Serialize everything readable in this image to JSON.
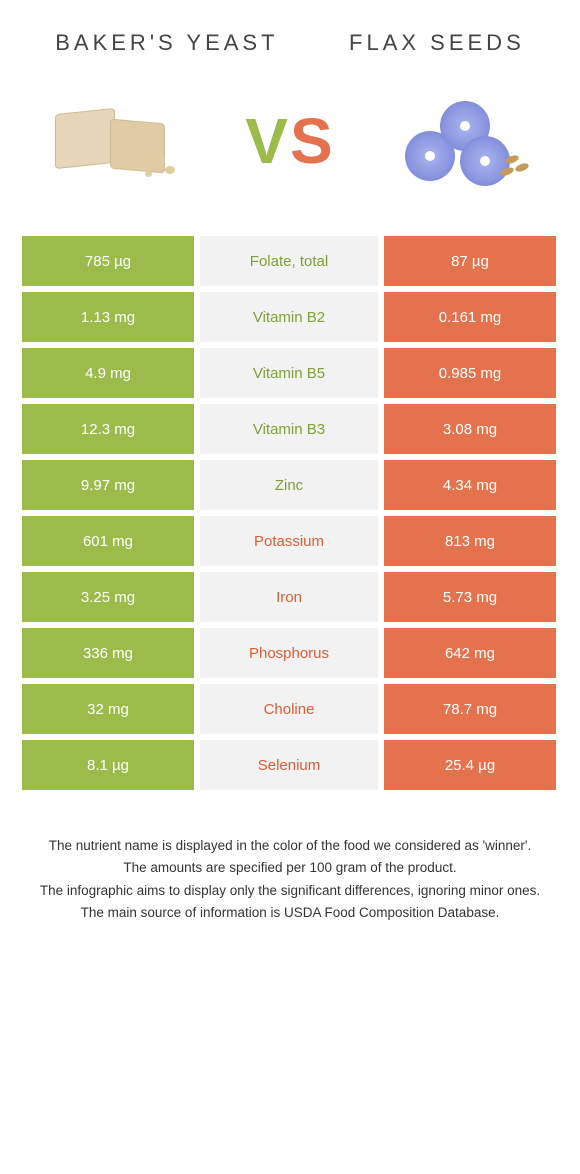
{
  "header": {
    "left_title": "BAKER'S YEAST",
    "right_title": "FLAX SEEDS",
    "vs": {
      "v": "V",
      "s": "S"
    }
  },
  "colors": {
    "green": "#9bbb4a",
    "orange": "#e3724d",
    "mid_bg": "#f2f2f2",
    "mid_green_text": "#7ea036",
    "mid_orange_text": "#d85e37"
  },
  "rows": [
    {
      "left": "785 µg",
      "mid": "Folate, total",
      "right": "87 µg",
      "winner": "left"
    },
    {
      "left": "1.13 mg",
      "mid": "Vitamin B2",
      "right": "0.161 mg",
      "winner": "left"
    },
    {
      "left": "4.9 mg",
      "mid": "Vitamin B5",
      "right": "0.985 mg",
      "winner": "left"
    },
    {
      "left": "12.3 mg",
      "mid": "Vitamin B3",
      "right": "3.08 mg",
      "winner": "left"
    },
    {
      "left": "9.97 mg",
      "mid": "Zinc",
      "right": "4.34 mg",
      "winner": "left"
    },
    {
      "left": "601 mg",
      "mid": "Potassium",
      "right": "813 mg",
      "winner": "right"
    },
    {
      "left": "3.25 mg",
      "mid": "Iron",
      "right": "5.73 mg",
      "winner": "right"
    },
    {
      "left": "336 mg",
      "mid": "Phosphorus",
      "right": "642 mg",
      "winner": "right"
    },
    {
      "left": "32 mg",
      "mid": "Choline",
      "right": "78.7 mg",
      "winner": "right"
    },
    {
      "left": "8.1 µg",
      "mid": "Selenium",
      "right": "25.4 µg",
      "winner": "right"
    }
  ],
  "footer": {
    "l1": "The nutrient name is displayed in the color of the food we considered as 'winner'.",
    "l2": "The amounts are specified per 100 gram of the product.",
    "l3": "The infographic aims to display only the significant differences, ignoring minor ones.",
    "l4": "The main source of information is USDA Food Composition Database."
  }
}
